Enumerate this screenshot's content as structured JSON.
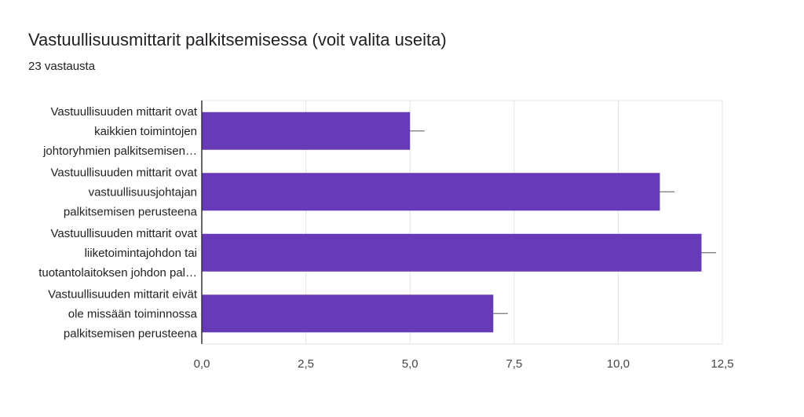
{
  "header": {
    "title": "Vastuullisuusmittarit palkitsemisessa (voit valita useita)",
    "subtitle": "23 vastausta"
  },
  "colors": {
    "bar": "#673ab7",
    "grid": "#e3e3e3",
    "axis": "#333333",
    "error_bar": "#757575"
  },
  "chart_data": {
    "type": "bar",
    "orientation": "horizontal",
    "categories": [
      [
        "Vastuullisuuden mittarit ovat",
        "kaikkien toimintojen",
        "johtoryhmien palkitsemisen…"
      ],
      [
        "Vastuullisuuden mittarit ovat",
        "vastuullisuusjohtajan",
        "palkitsemisen perusteena"
      ],
      [
        "Vastuullisuuden mittarit ovat",
        "liiketoimintajohdon tai",
        "tuotantolaitoksen johdon pal…"
      ],
      [
        "Vastuullisuuden mittarit eivät",
        "ole missään toiminnossa",
        "palkitsemisen perusteena"
      ]
    ],
    "values": [
      5,
      11,
      12,
      7
    ],
    "error_plus": [
      0.35,
      0.35,
      0.35,
      0.35
    ],
    "xlim": [
      0,
      12.5
    ],
    "xticks": [
      0,
      2.5,
      5,
      7.5,
      10,
      12.5
    ],
    "xtick_labels": [
      "0,0",
      "2,5",
      "5,0",
      "7,5",
      "10,0",
      "12,5"
    ],
    "grid": true
  }
}
